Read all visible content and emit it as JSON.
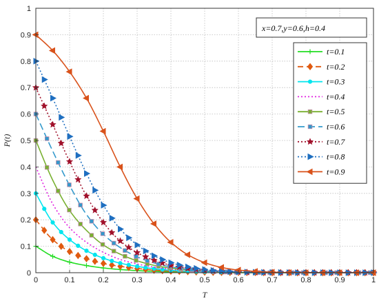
{
  "chart_data": {
    "type": "line",
    "title": "",
    "xlabel": "T",
    "ylabel": "P(t)",
    "xlim": [
      0,
      1
    ],
    "ylim": [
      0,
      1
    ],
    "x_ticks": [
      "0",
      "0.1",
      "0.2",
      "0.3",
      "0.4",
      "0.5",
      "0.6",
      "0.7",
      "0.8",
      "0.9",
      "1"
    ],
    "y_ticks": [
      "0",
      "0.1",
      "0.2",
      "0.3",
      "0.4",
      "0.5",
      "0.6",
      "0.7",
      "0.8",
      "0.9",
      "1"
    ],
    "grid": true,
    "legend_position": "top-right",
    "annotation": "x=0.7,y=0.6,h=0.4",
    "x": [
      0,
      0.05,
      0.1,
      0.15,
      0.2,
      0.25,
      0.3,
      0.35,
      0.4,
      0.45,
      0.5,
      0.55,
      0.6,
      0.7,
      0.8,
      0.9,
      1.0
    ],
    "series": [
      {
        "name": "t=0.1",
        "color": "#22dd22",
        "dash": "solid",
        "marker": "plus",
        "values": [
          0.1,
          0.062,
          0.04,
          0.027,
          0.018,
          0.012,
          0.008,
          0.005,
          0.003,
          0.002,
          0.001,
          0.001,
          0.0,
          0.0,
          0.0,
          0.0,
          0.0
        ]
      },
      {
        "name": "t=0.2",
        "color": "#e05a10",
        "dash": "dashed",
        "marker": "diamond",
        "values": [
          0.2,
          0.125,
          0.08,
          0.053,
          0.035,
          0.024,
          0.016,
          0.01,
          0.006,
          0.004,
          0.002,
          0.001,
          0.001,
          0.0,
          0.0,
          0.0,
          0.0
        ]
      },
      {
        "name": "t=0.3",
        "color": "#00e5ee",
        "dash": "solid",
        "marker": "circle",
        "values": [
          0.3,
          0.19,
          0.125,
          0.083,
          0.055,
          0.036,
          0.024,
          0.015,
          0.009,
          0.005,
          0.003,
          0.002,
          0.001,
          0.0,
          0.0,
          0.0,
          0.0
        ]
      },
      {
        "name": "t=0.4",
        "color": "#e020e0",
        "dash": "dotted",
        "marker": "none",
        "values": [
          0.4,
          0.26,
          0.17,
          0.115,
          0.077,
          0.05,
          0.033,
          0.021,
          0.013,
          0.008,
          0.004,
          0.002,
          0.001,
          0.0,
          0.0,
          0.0,
          0.0
        ]
      },
      {
        "name": "t=0.5",
        "color": "#78b030",
        "dash": "solid",
        "marker": "square",
        "values": [
          0.5,
          0.35,
          0.235,
          0.16,
          0.105,
          0.07,
          0.045,
          0.028,
          0.017,
          0.01,
          0.006,
          0.003,
          0.001,
          0.0,
          0.0,
          0.0,
          0.0
        ]
      },
      {
        "name": "t=0.6",
        "color": "#3399cc",
        "dash": "longdash",
        "marker": "square",
        "values": [
          0.6,
          0.46,
          0.33,
          0.22,
          0.145,
          0.095,
          0.06,
          0.037,
          0.022,
          0.013,
          0.007,
          0.004,
          0.002,
          0.0,
          0.0,
          0.0,
          0.0
        ]
      },
      {
        "name": "t=0.7",
        "color": "#a0102a",
        "dash": "dotted",
        "marker": "star",
        "values": [
          0.7,
          0.56,
          0.42,
          0.29,
          0.19,
          0.12,
          0.076,
          0.047,
          0.028,
          0.016,
          0.009,
          0.005,
          0.002,
          0.0,
          0.0,
          0.0,
          0.0
        ]
      },
      {
        "name": "t=0.8",
        "color": "#1f6fc0",
        "dash": "dotted",
        "marker": "triangle-right",
        "values": [
          0.8,
          0.66,
          0.515,
          0.375,
          0.255,
          0.165,
          0.105,
          0.064,
          0.038,
          0.022,
          0.012,
          0.006,
          0.003,
          0.001,
          0.0,
          0.0,
          0.0
        ]
      },
      {
        "name": "t=0.9",
        "color": "#d9521b",
        "dash": "solid",
        "marker": "triangle-left",
        "values": [
          0.9,
          0.84,
          0.76,
          0.66,
          0.535,
          0.4,
          0.28,
          0.185,
          0.115,
          0.068,
          0.038,
          0.02,
          0.01,
          0.002,
          0.0,
          0.0,
          0.0
        ]
      }
    ]
  }
}
